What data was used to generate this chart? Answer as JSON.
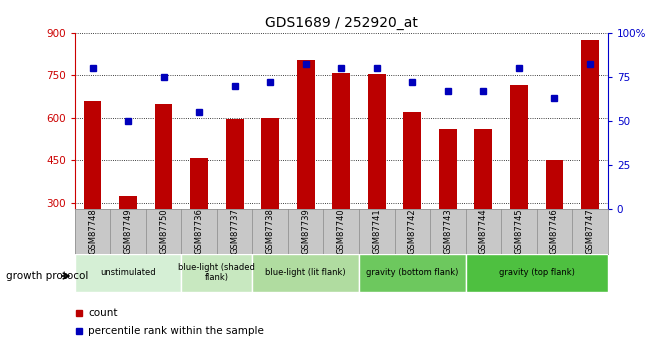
{
  "title": "GDS1689 / 252920_at",
  "samples": [
    "GSM87748",
    "GSM87749",
    "GSM87750",
    "GSM87736",
    "GSM87737",
    "GSM87738",
    "GSM87739",
    "GSM87740",
    "GSM87741",
    "GSM87742",
    "GSM87743",
    "GSM87744",
    "GSM87745",
    "GSM87746",
    "GSM87747"
  ],
  "counts": [
    660,
    325,
    650,
    460,
    595,
    600,
    805,
    760,
    755,
    620,
    560,
    560,
    715,
    450,
    875
  ],
  "percentiles": [
    80,
    50,
    75,
    55,
    70,
    72,
    82,
    80,
    80,
    72,
    67,
    67,
    80,
    63,
    82
  ],
  "ylim_left": [
    280,
    900
  ],
  "ylim_right": [
    0,
    100
  ],
  "yticks_left": [
    300,
    450,
    600,
    750,
    900
  ],
  "yticks_right": [
    0,
    25,
    50,
    75,
    100
  ],
  "groups": [
    {
      "label": "unstimulated",
      "start": 0,
      "end": 3,
      "color": "#d5efd5"
    },
    {
      "label": "blue-light (shaded\nflank)",
      "start": 3,
      "end": 5,
      "color": "#c8e8c0"
    },
    {
      "label": "blue-light (lit flank)",
      "start": 5,
      "end": 8,
      "color": "#b0dca0"
    },
    {
      "label": "gravity (bottom flank)",
      "start": 8,
      "end": 11,
      "color": "#6dc85e"
    },
    {
      "label": "gravity (top flank)",
      "start": 11,
      "end": 15,
      "color": "#4ec040"
    }
  ],
  "bar_color": "#bb0000",
  "dot_color": "#0000bb",
  "bar_width": 0.5,
  "legend_items": [
    {
      "label": "count",
      "color": "#bb0000"
    },
    {
      "label": "percentile rank within the sample",
      "color": "#0000bb"
    }
  ],
  "growth_protocol_label": "growth protocol",
  "tick_label_color_left": "#cc0000",
  "tick_label_color_right": "#0000cc",
  "sample_box_color": "#c8c8c8"
}
